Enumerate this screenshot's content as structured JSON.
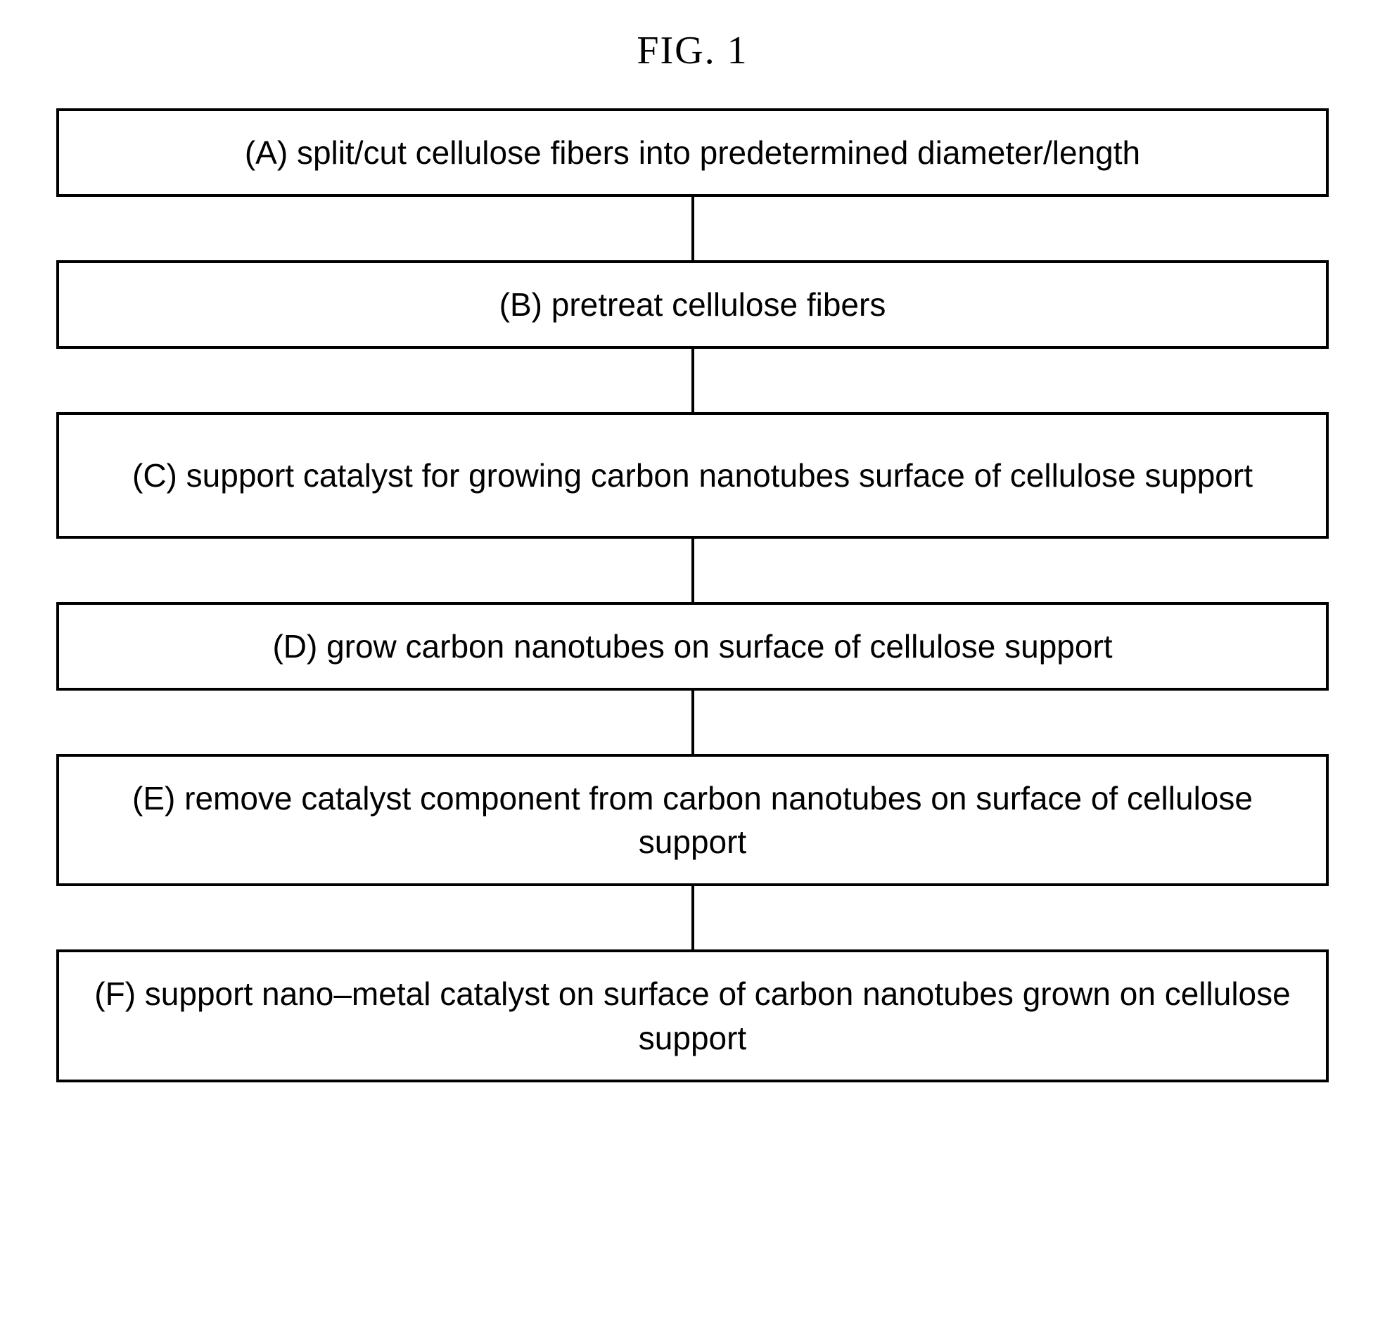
{
  "figure": {
    "title": "FIG. 1",
    "title_fontsize": 56,
    "title_font_family": "Times New Roman",
    "title_color": "#000000",
    "background_color": "#ffffff"
  },
  "flowchart": {
    "type": "flowchart",
    "box_border_color": "#000000",
    "box_border_width": 4,
    "box_background_color": "#ffffff",
    "box_text_color": "#000000",
    "box_fontsize": 46,
    "box_font_family": "Arial",
    "connector_color": "#000000",
    "connector_width": 4,
    "connector_height": 90,
    "steps": [
      {
        "label": "(A) split/cut cellulose fibers into predetermined diameter/length",
        "min_height": 120
      },
      {
        "label": "(B) pretreat cellulose fibers",
        "min_height": 120
      },
      {
        "label": "(C) support catalyst for growing carbon nanotubes surface of cellulose support",
        "min_height": 180
      },
      {
        "label": "(D) grow carbon nanotubes on surface of cellulose support",
        "min_height": 120
      },
      {
        "label": "(E) remove catalyst component from carbon nanotubes on surface of cellulose support",
        "min_height": 180
      },
      {
        "label": "(F) support nano–metal catalyst on surface of carbon nanotubes grown on cellulose support",
        "min_height": 180
      }
    ]
  }
}
